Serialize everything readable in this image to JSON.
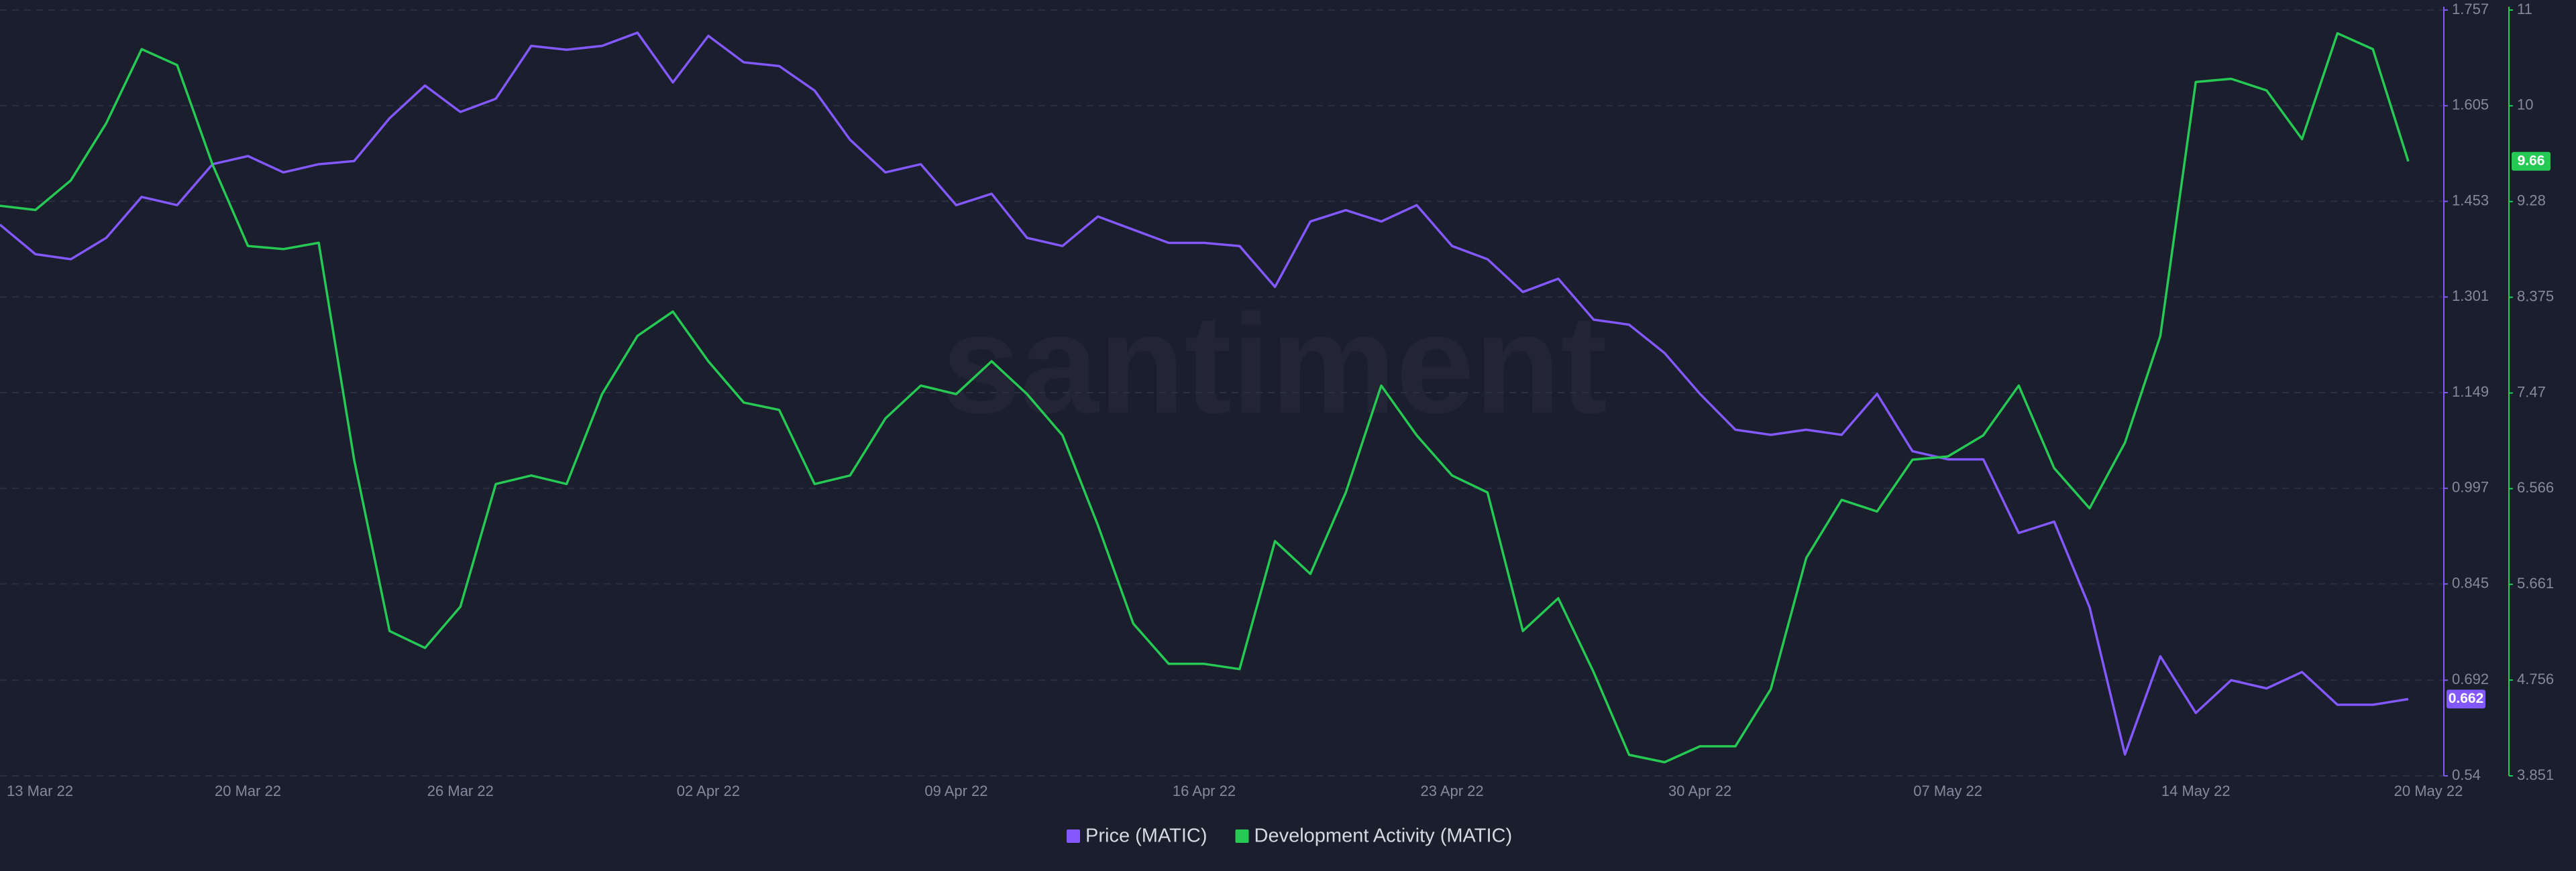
{
  "chart_data": {
    "type": "line",
    "watermark": "santiment",
    "x": [
      "13 Mar 22",
      "14 Mar 22",
      "15 Mar 22",
      "16 Mar 22",
      "17 Mar 22",
      "18 Mar 22",
      "19 Mar 22",
      "20 Mar 22",
      "21 Mar 22",
      "22 Mar 22",
      "23 Mar 22",
      "24 Mar 22",
      "25 Mar 22",
      "26 Mar 22",
      "27 Mar 22",
      "28 Mar 22",
      "29 Mar 22",
      "30 Mar 22",
      "31 Mar 22",
      "01 Apr 22",
      "02 Apr 22",
      "03 Apr 22",
      "04 Apr 22",
      "05 Apr 22",
      "06 Apr 22",
      "07 Apr 22",
      "08 Apr 22",
      "09 Apr 22",
      "10 Apr 22",
      "11 Apr 22",
      "12 Apr 22",
      "13 Apr 22",
      "14 Apr 22",
      "15 Apr 22",
      "16 Apr 22",
      "17 Apr 22",
      "18 Apr 22",
      "19 Apr 22",
      "20 Apr 22",
      "21 Apr 22",
      "22 Apr 22",
      "23 Apr 22",
      "24 Apr 22",
      "25 Apr 22",
      "26 Apr 22",
      "27 Apr 22",
      "28 Apr 22",
      "29 Apr 22",
      "30 Apr 22",
      "01 May 22",
      "02 May 22",
      "03 May 22",
      "04 May 22",
      "05 May 22",
      "06 May 22",
      "07 May 22",
      "08 May 22",
      "09 May 22",
      "10 May 22",
      "11 May 22",
      "12 May 22",
      "13 May 22",
      "14 May 22",
      "15 May 22",
      "16 May 22",
      "17 May 22",
      "18 May 22",
      "19 May 22",
      "20 May 22"
    ],
    "xticks": [
      "13 Mar 22",
      "20 Mar 22",
      "26 Mar 22",
      "02 Apr 22",
      "09 Apr 22",
      "16 Apr 22",
      "23 Apr 22",
      "30 Apr 22",
      "07 May 22",
      "14 May 22",
      "20 May 22"
    ],
    "series": [
      {
        "name": "Price (MATIC)",
        "color": "#8358ff",
        "axis": "y",
        "values": [
          1.416,
          1.369,
          1.361,
          1.395,
          1.46,
          1.447,
          1.512,
          1.525,
          1.499,
          1.512,
          1.517,
          1.585,
          1.637,
          1.595,
          1.616,
          1.7,
          1.694,
          1.7,
          1.721,
          1.642,
          1.716,
          1.674,
          1.668,
          1.629,
          1.551,
          1.499,
          1.512,
          1.447,
          1.465,
          1.395,
          1.382,
          1.429,
          1.408,
          1.387,
          1.387,
          1.382,
          1.317,
          1.421,
          1.439,
          1.421,
          1.447,
          1.382,
          1.361,
          1.309,
          1.33,
          1.265,
          1.257,
          1.212,
          1.147,
          1.09,
          1.082,
          1.09,
          1.082,
          1.147,
          1.056,
          1.043,
          1.043,
          0.926,
          0.944,
          0.808,
          0.574,
          0.73,
          0.64,
          0.692,
          0.679,
          0.705,
          0.653,
          0.653,
          0.662
        ]
      },
      {
        "name": "Development Activity (MATIC)",
        "color": "#26c953",
        "axis": "y2",
        "values": [
          9.24,
          9.2,
          9.48,
          10.02,
          10.72,
          10.57,
          9.63,
          8.86,
          8.83,
          8.89,
          6.84,
          5.22,
          5.06,
          5.45,
          6.61,
          6.69,
          6.61,
          7.46,
          8.01,
          8.24,
          7.77,
          7.38,
          7.31,
          6.61,
          6.69,
          7.23,
          7.54,
          7.46,
          7.77,
          7.46,
          7.07,
          6.22,
          5.29,
          4.91,
          4.91,
          4.86,
          6.07,
          5.76,
          6.53,
          7.54,
          7.07,
          6.69,
          6.53,
          5.22,
          5.53,
          4.83,
          4.05,
          3.98,
          4.13,
          4.13,
          4.67,
          5.91,
          6.46,
          6.35,
          6.84,
          6.87,
          7.07,
          7.54,
          6.76,
          6.38,
          7.0,
          8.01,
          10.41,
          10.44,
          10.33,
          9.87,
          10.87,
          10.72,
          9.66
        ]
      }
    ],
    "ylim": [
      0.54,
      1.757
    ],
    "yticks": [
      0.54,
      0.692,
      0.845,
      0.997,
      1.149,
      1.301,
      1.453,
      1.605,
      1.757
    ],
    "y2lim": [
      3.851,
      11.09
    ],
    "y2ticks": [
      3.851,
      4.756,
      5.661,
      6.566,
      7.47,
      8.375,
      9.28,
      {
        "value": 10.185,
        "label": "10"
      },
      {
        "value": 11.09,
        "label": "11"
      }
    ],
    "grid": true
  }
}
